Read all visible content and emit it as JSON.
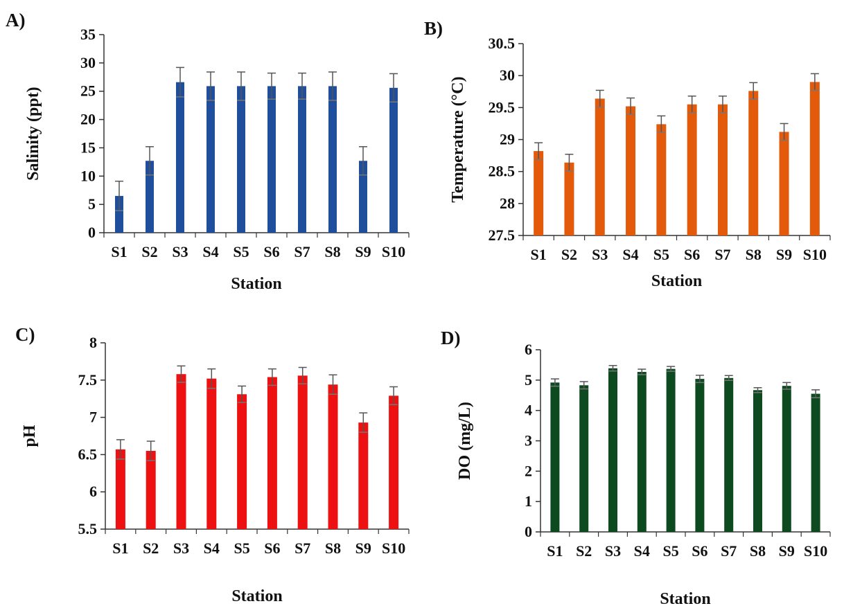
{
  "chart_data": [
    {
      "type": "bar",
      "panel_label": "A)",
      "categories": [
        "S1",
        "S2",
        "S3",
        "S4",
        "S5",
        "S6",
        "S7",
        "S8",
        "S9",
        "S10"
      ],
      "values": [
        6.5,
        12.7,
        26.6,
        25.9,
        25.9,
        25.9,
        25.9,
        25.9,
        12.7,
        25.6
      ],
      "errors": [
        2.6,
        2.5,
        2.6,
        2.5,
        2.5,
        2.3,
        2.3,
        2.5,
        2.5,
        2.5
      ],
      "xlabel": "Station",
      "ylabel": "Salinity (ppt)",
      "ylim": [
        0,
        35
      ],
      "yticks": [
        "0",
        "5",
        "10",
        "15",
        "20",
        "25",
        "30",
        "35"
      ],
      "color": "#1f4e9c",
      "grid": false
    },
    {
      "type": "bar",
      "panel_label": "B)",
      "categories": [
        "S1",
        "S2",
        "S3",
        "S4",
        "S5",
        "S6",
        "S7",
        "S8",
        "S9",
        "S10"
      ],
      "values": [
        28.82,
        28.64,
        29.64,
        29.52,
        29.24,
        29.55,
        29.55,
        29.76,
        29.12,
        29.9
      ],
      "errors": [
        0.13,
        0.13,
        0.13,
        0.13,
        0.13,
        0.13,
        0.13,
        0.13,
        0.13,
        0.13
      ],
      "xlabel": "Station",
      "ylabel": "Temperature (°C)",
      "ylim": [
        27.5,
        30.5
      ],
      "yticks": [
        "27.5",
        "28",
        "28.5",
        "29",
        "29.5",
        "30",
        "30.5"
      ],
      "color": "#e35a0b",
      "grid": false
    },
    {
      "type": "bar",
      "panel_label": "C)",
      "categories": [
        "S1",
        "S2",
        "S3",
        "S4",
        "S5",
        "S6",
        "S7",
        "S8",
        "S9",
        "S10"
      ],
      "values": [
        6.57,
        6.55,
        7.58,
        7.52,
        7.31,
        7.54,
        7.56,
        7.44,
        6.93,
        7.29
      ],
      "errors": [
        0.13,
        0.13,
        0.11,
        0.13,
        0.11,
        0.11,
        0.11,
        0.13,
        0.13,
        0.12
      ],
      "xlabel": "Station",
      "ylabel": "pH",
      "ylim": [
        5.5,
        8
      ],
      "yticks": [
        "5.5",
        "6",
        "6.5",
        "7",
        "7.5",
        "8"
      ],
      "color": "#ee1111",
      "grid": false
    },
    {
      "type": "bar",
      "panel_label": "D)",
      "categories": [
        "S1",
        "S2",
        "S3",
        "S4",
        "S5",
        "S6",
        "S7",
        "S8",
        "S9",
        "S10"
      ],
      "values": [
        4.92,
        4.83,
        5.39,
        5.27,
        5.37,
        5.04,
        5.07,
        4.67,
        4.81,
        4.55
      ],
      "errors": [
        0.12,
        0.12,
        0.09,
        0.09,
        0.08,
        0.12,
        0.08,
        0.08,
        0.11,
        0.13
      ],
      "xlabel": "Station",
      "ylabel": "DO (mg/L)",
      "ylim": [
        0,
        6
      ],
      "yticks": [
        "0",
        "1",
        "2",
        "3",
        "4",
        "5",
        "6"
      ],
      "color": "#0d4a1f",
      "grid": false
    }
  ]
}
